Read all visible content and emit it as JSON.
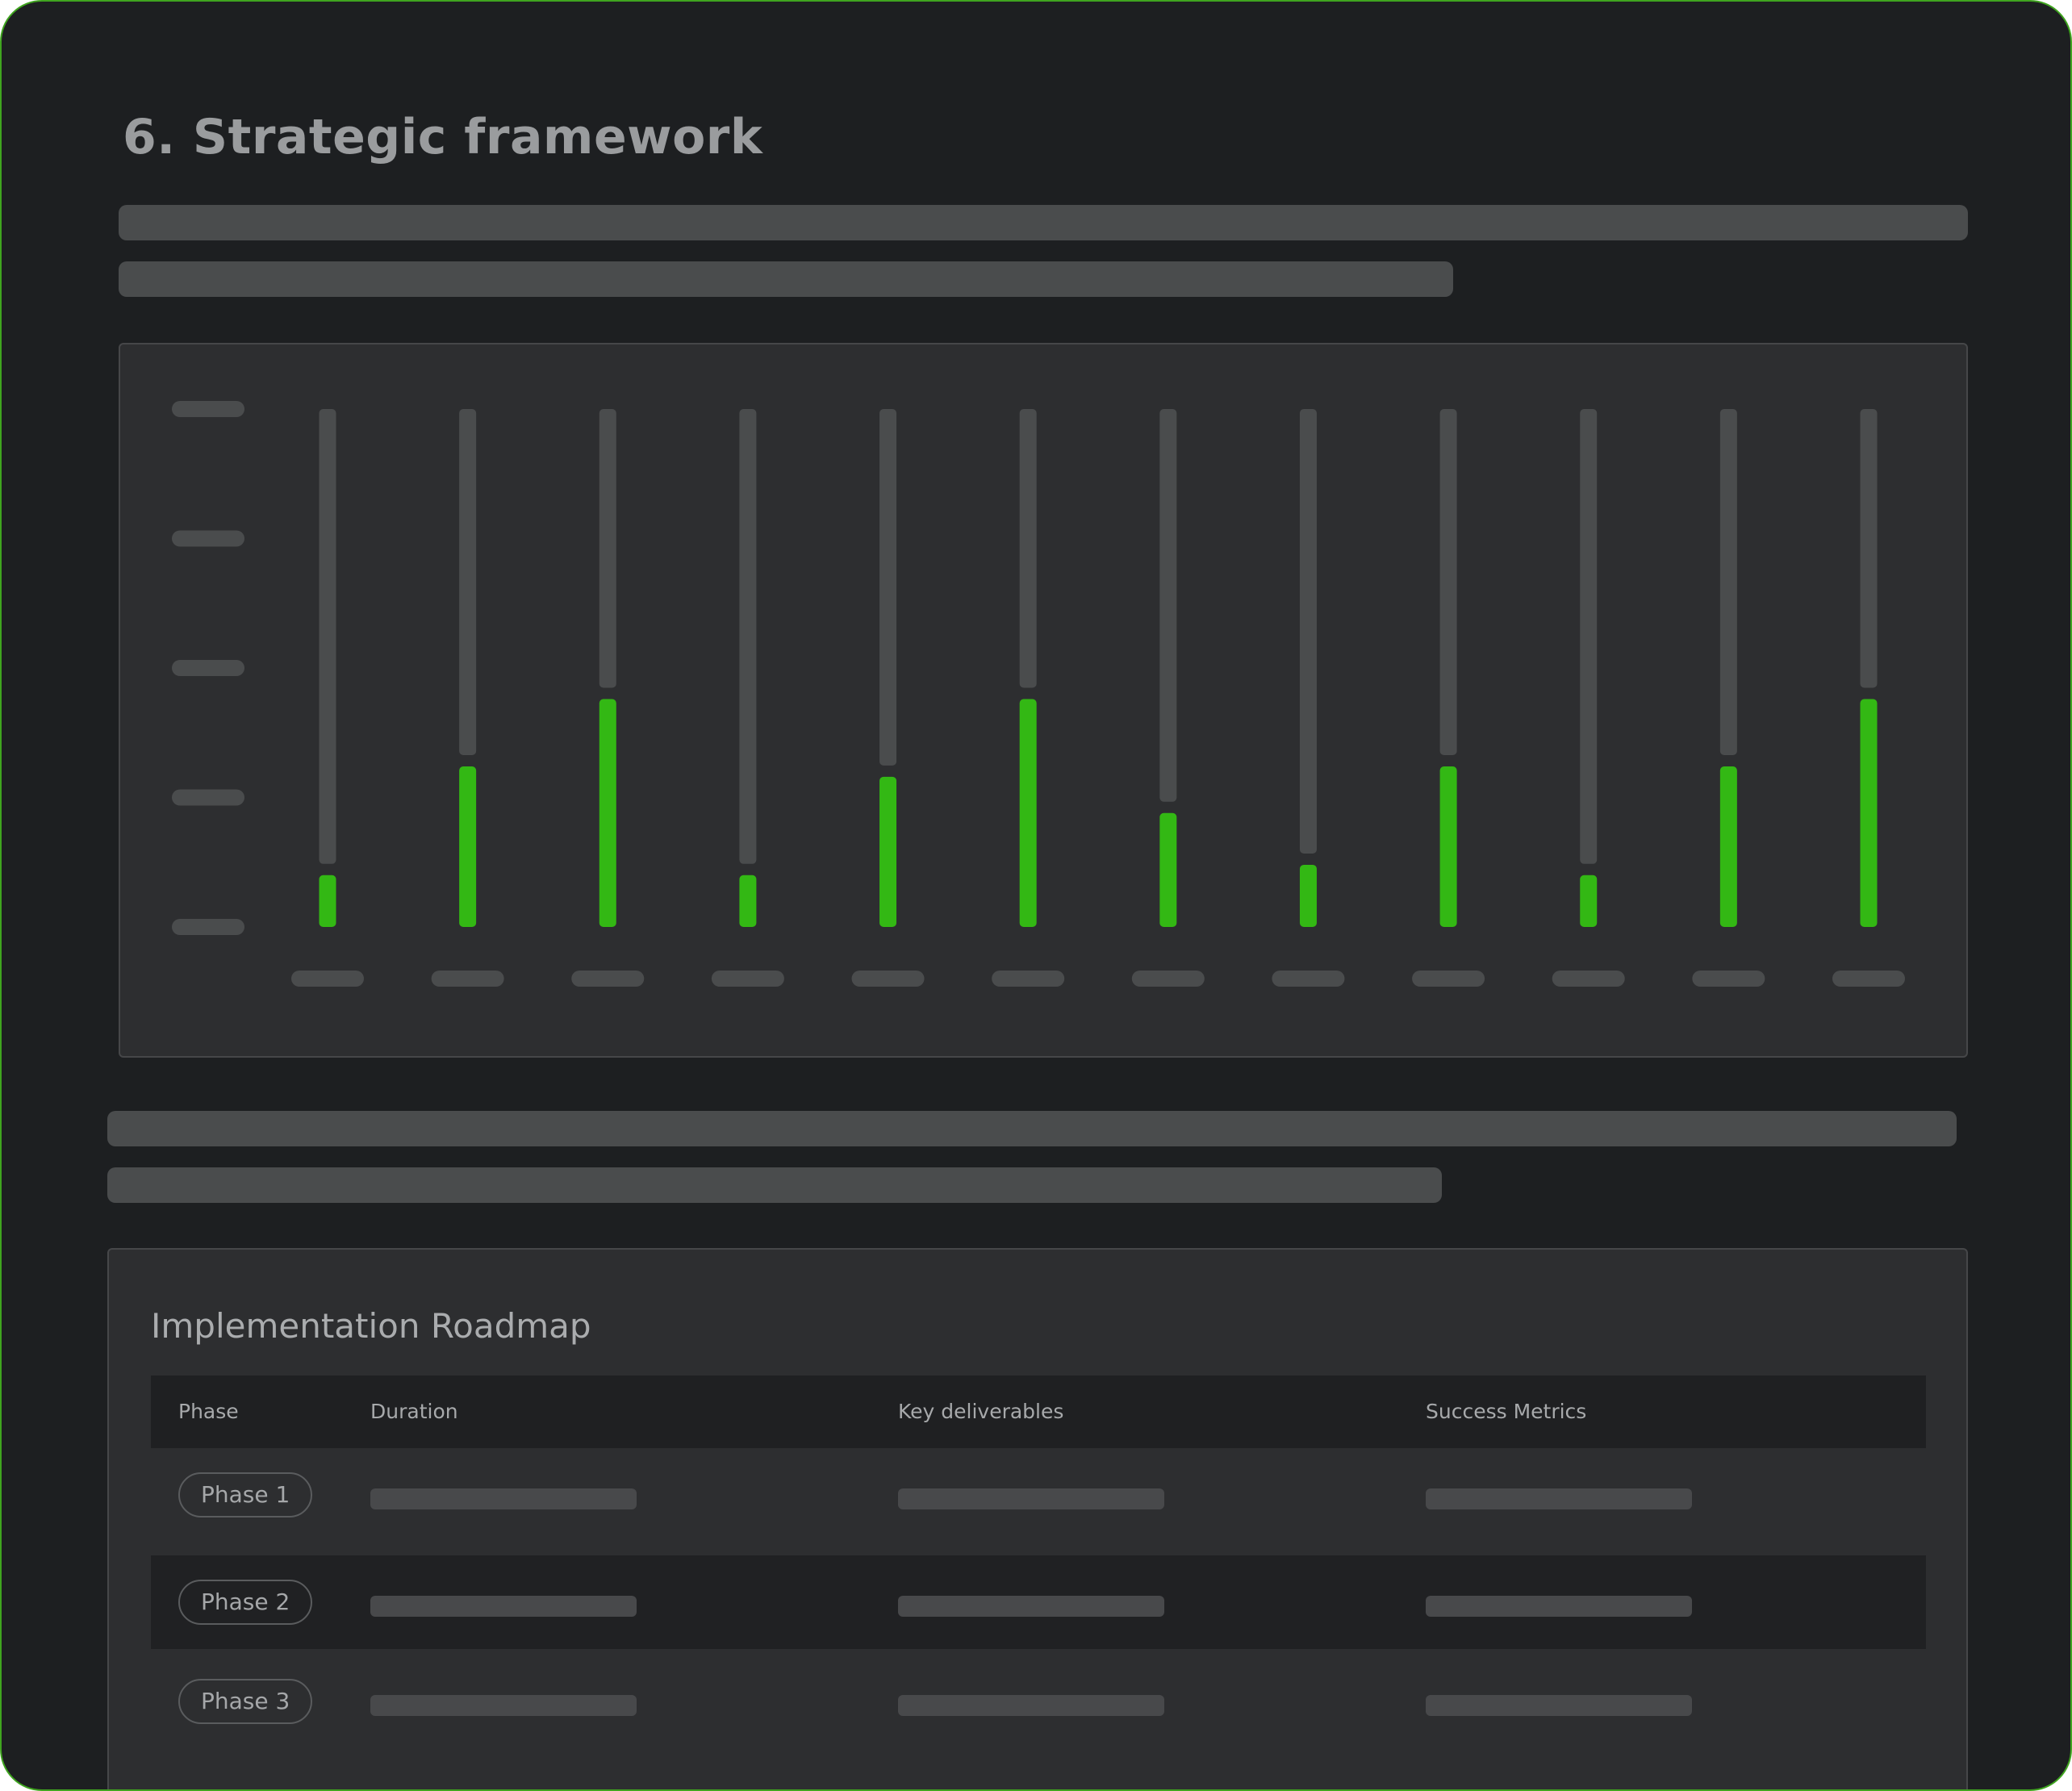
{
  "page": {
    "title": "6. Strategic framework"
  },
  "colors": {
    "background": "#1d1f21",
    "panel": "#2d2e30",
    "accent_green": "#33b814",
    "track": "#4a4c4d",
    "frame_border": "#3fa41f"
  },
  "chart_data": {
    "type": "bar",
    "categories": [
      "",
      "",
      "",
      "",
      "",
      "",
      "",
      "",
      "",
      "",
      "",
      ""
    ],
    "values": [
      0.1,
      0.31,
      0.44,
      0.1,
      0.29,
      0.44,
      0.22,
      0.12,
      0.31,
      0.1,
      0.31,
      0.44
    ],
    "ylim": [
      0,
      1
    ],
    "grid": false,
    "legend": "none"
  },
  "roadmap": {
    "title": "Implementation Roadmap",
    "columns": [
      "Phase",
      "Duration",
      "Key deliverables",
      "Success Metrics"
    ],
    "rows": [
      {
        "phase": "Phase 1"
      },
      {
        "phase": "Phase 2"
      },
      {
        "phase": "Phase 3"
      }
    ]
  }
}
